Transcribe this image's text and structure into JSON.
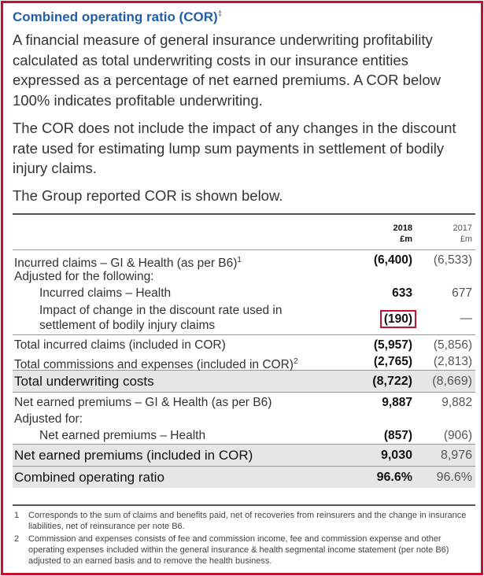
{
  "title": "Combined operating ratio (COR)",
  "title_mark": "‡",
  "paragraphs": [
    "A financial measure of general insurance underwriting profitability calculated as total underwriting costs in our insurance entities expressed as a percentage of net earned premiums. A COR below 100% indicates profitable underwriting.",
    "The COR does not include the impact of any changes in the discount rate used for estimating lump sum payments in settlement of bodily injury claims.",
    "The Group reported COR is shown below."
  ],
  "table": {
    "col1": {
      "year": "2018",
      "unit": "£m"
    },
    "col2": {
      "year": "2017",
      "unit": "£m"
    },
    "rows": {
      "incurred": {
        "label": "Incurred claims – GI & Health (as per B6)",
        "sup": "1",
        "v1": "(6,400)",
        "v2": "(6,533)"
      },
      "adjusted": {
        "label": "Adjusted for the following:"
      },
      "incurred_health": {
        "label": "Incurred claims – Health",
        "v1": "633",
        "v2": "677"
      },
      "discount_line1": "Impact of change in the discount rate used in",
      "discount_line2": "settlement of bodily injury claims",
      "discount_v1": "(190)",
      "discount_v2": "—",
      "total_incurred": {
        "label": "Total incurred claims (included in COR)",
        "v1": "(5,957)",
        "v2": "(5,856)"
      },
      "total_commissions": {
        "label": "Total commissions and expenses (included in COR)",
        "sup": "2",
        "v1": "(2,765)",
        "v2": "(2,813)"
      },
      "total_underwriting": {
        "label": "Total underwriting costs",
        "v1": "(8,722)",
        "v2": "(8,669)"
      },
      "net_earned": {
        "label": "Net earned premiums – GI & Health (as per B6)",
        "v1": "9,887",
        "v2": "9,882"
      },
      "adjusted_for": {
        "label": "Adjusted for:"
      },
      "net_earned_health": {
        "label": "Net earned premiums – Health",
        "v1": "(857)",
        "v2": "(906)"
      },
      "net_included": {
        "label": "Net earned premiums (included in COR)",
        "v1": "9,030",
        "v2": "8,976"
      },
      "cor": {
        "label": "Combined operating ratio",
        "v1": "96.6%",
        "v2": "96.6%"
      }
    }
  },
  "footnotes": [
    {
      "num": "1",
      "text": "Corresponds to the sum of claims and benefits paid, net of recoveries from reinsurers and the change in insurance liabilities, net of reinsurance per note B6."
    },
    {
      "num": "2",
      "text": "Commission and expenses consists of fee and commission income, fee and commission expense and other operating expenses included within the general insurance & health segmental income statement (per note B6) adjusted to an earned basis and to remove the health business."
    }
  ],
  "colors": {
    "accent": "#c8102e",
    "title": "#1f5fa8",
    "shade": "#e6e6e6"
  }
}
